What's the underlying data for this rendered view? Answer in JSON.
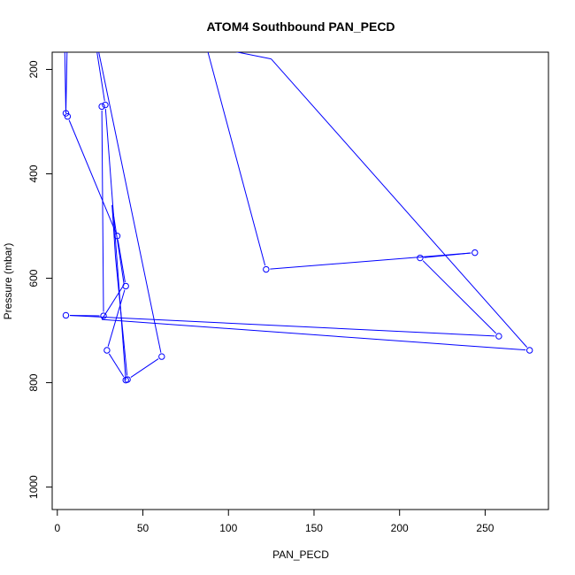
{
  "chart_data": {
    "type": "line",
    "title": "ATOM4 Southbound PAN_PECD",
    "xlabel": "PAN_PECD",
    "ylabel": "Pressure (mbar)",
    "xlim": [
      -3,
      287
    ],
    "ylim": [
      1043,
      167
    ],
    "y_reversed": true,
    "grid": false,
    "xticks": [
      0,
      50,
      100,
      150,
      200,
      250
    ],
    "yticks": [
      200,
      400,
      600,
      800,
      1000
    ],
    "series": [
      {
        "color": "#0000ff",
        "marker": "open-circle",
        "x": [
          26,
          27,
          5,
          258,
          212,
          244,
          122,
          85,
          6,
          5,
          6,
          35,
          40,
          29,
          40,
          40,
          36,
          28,
          20,
          61,
          41,
          34,
          32,
          39,
          26,
          276,
          125,
          4,
          5
        ],
        "y": [
          271,
          672,
          671,
          711,
          561,
          551,
          583,
          130,
          110,
          284,
          290,
          519,
          615,
          738,
          795,
          795,
          615,
          268,
          100,
          750,
          794,
          560,
          460,
          612,
          679,
          738,
          180,
          100,
          284
        ],
        "markers": [
          1,
          1,
          1,
          1,
          1,
          1,
          1,
          0,
          0,
          0,
          1,
          1,
          1,
          1,
          1,
          0,
          0,
          1,
          0,
          1,
          1,
          0,
          0,
          0,
          0,
          1,
          0,
          0,
          1
        ]
      }
    ]
  }
}
